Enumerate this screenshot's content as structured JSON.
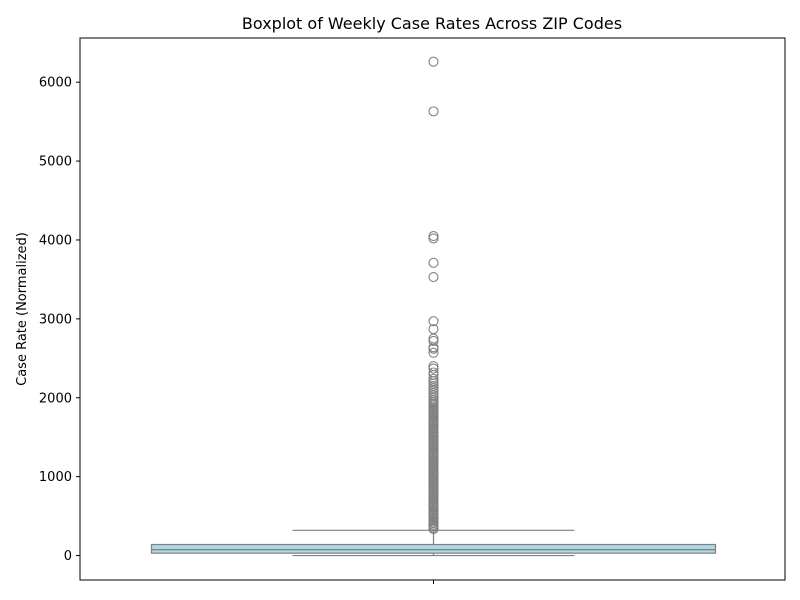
{
  "chart_data": {
    "type": "boxplot",
    "title": "Boxplot of Weekly Case Rates Across ZIP Codes",
    "xlabel": "",
    "ylabel": "Case Rate (Normalized)",
    "ylim": [
      -310,
      6560
    ],
    "yticks": [
      0,
      1000,
      2000,
      3000,
      4000,
      5000,
      6000
    ],
    "grid": false,
    "legend": "none",
    "colors": {
      "box_fill": "#add8e6",
      "line": "#808080",
      "outlier_edge": "#808080"
    },
    "box": {
      "min": 0,
      "q1": 30,
      "median": 75,
      "q3": 140,
      "whisker_low": 0,
      "whisker_high": 320
    },
    "outliers": [
      6260,
      5630,
      4050,
      4020,
      3710,
      3530,
      2970,
      2870,
      2750,
      2720,
      2640,
      2620,
      2570,
      2400,
      2370,
      2320,
      2290,
      2240,
      2210,
      2180,
      2150,
      2120,
      2090,
      2060,
      2030,
      2000,
      1970,
      1950,
      1930,
      1910,
      1890,
      1870,
      1850,
      1830,
      1810,
      1790,
      1770,
      1750,
      1730,
      1710,
      1690,
      1670,
      1650,
      1630,
      1610,
      1590,
      1570,
      1550,
      1530,
      1510,
      1490,
      1470,
      1450,
      1430,
      1410,
      1390,
      1370,
      1350,
      1330,
      1310,
      1290,
      1270,
      1250,
      1230,
      1210,
      1190,
      1170,
      1150,
      1130,
      1110,
      1090,
      1070,
      1050,
      1030,
      1010,
      990,
      970,
      950,
      930,
      910,
      890,
      870,
      850,
      830,
      810,
      790,
      770,
      750,
      730,
      710,
      690,
      670,
      650,
      630,
      610,
      590,
      570,
      550,
      530,
      510,
      490,
      470,
      450,
      430,
      410,
      390,
      370,
      350,
      335
    ]
  }
}
